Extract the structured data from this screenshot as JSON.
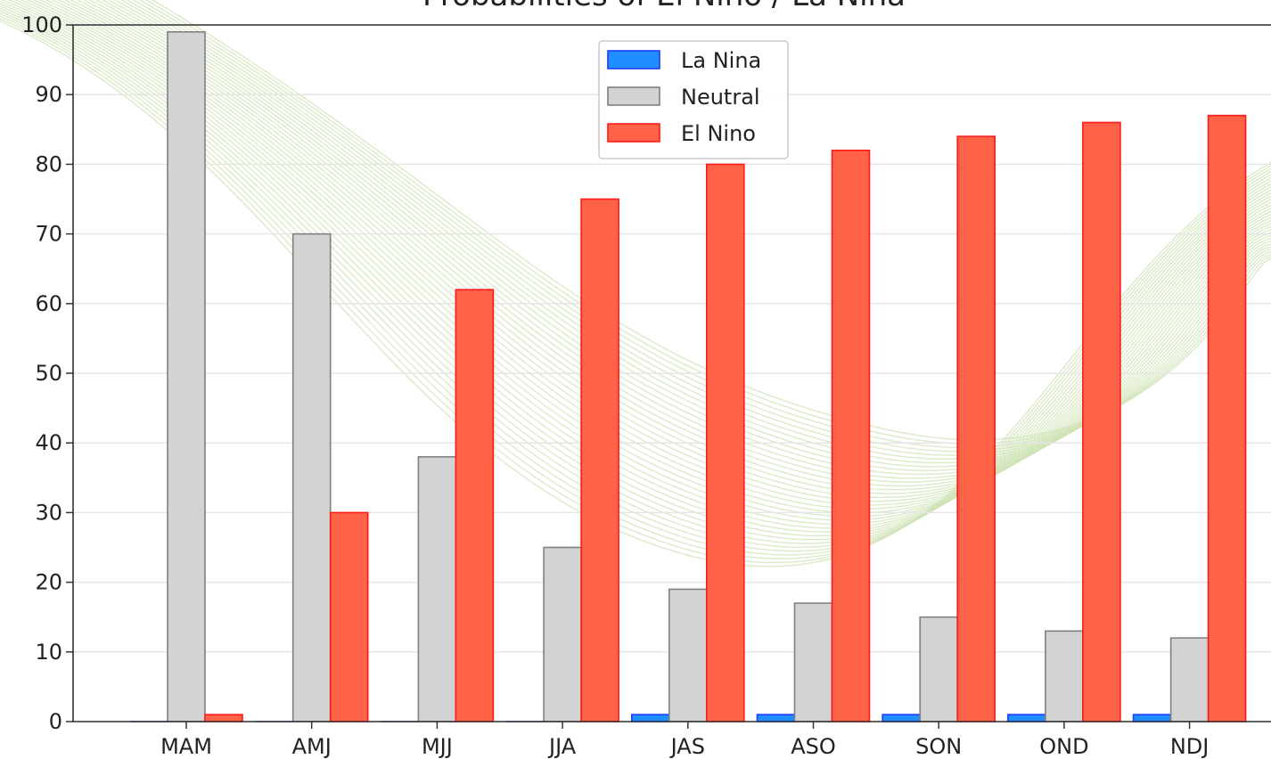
{
  "chart_data": {
    "type": "bar",
    "title": "Probabilities of El Nino / La Nina",
    "xlabel": "",
    "ylabel": "",
    "ylim": [
      0,
      100
    ],
    "yticks": [
      0,
      10,
      20,
      30,
      40,
      50,
      60,
      70,
      80,
      90,
      100
    ],
    "categories": [
      "MAM",
      "AMJ",
      "MJJ",
      "JJA",
      "JAS",
      "ASO",
      "SON",
      "OND",
      "NDJ"
    ],
    "series": [
      {
        "name": "La Nina",
        "color": "#1f8fff",
        "edge": "#1a3cff",
        "values": [
          0,
          0,
          0,
          0,
          1,
          1,
          1,
          1,
          1
        ]
      },
      {
        "name": "Neutral",
        "color": "#d3d3d3",
        "edge": "#808080",
        "values": [
          99,
          70,
          38,
          25,
          19,
          17,
          15,
          13,
          12
        ]
      },
      {
        "name": "El Nino",
        "color": "#ff6347",
        "edge": "#ff1a1a",
        "values": [
          1,
          30,
          62,
          75,
          80,
          82,
          84,
          86,
          87
        ]
      }
    ],
    "grid": true,
    "legend_position": "top-center"
  }
}
